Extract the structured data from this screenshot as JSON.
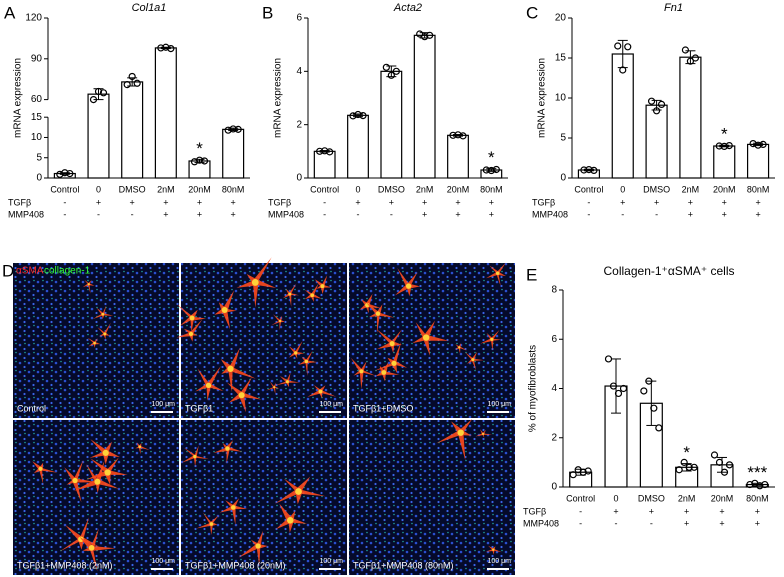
{
  "chart_data": [
    {
      "type": "bar",
      "panel": "A",
      "title": "Col1a1",
      "y_label": "mRNA expression",
      "color": "#000000",
      "categories": [
        "Control",
        "0",
        "DMSO",
        "2nM",
        "20nM",
        "80nM"
      ],
      "values": [
        1.1,
        64,
        73,
        98,
        4.2,
        12
      ],
      "errors": [
        0.2,
        4,
        3,
        0.5,
        0.4,
        0.3
      ],
      "points": [
        [
          0.9,
          1.3,
          1.1
        ],
        [
          60,
          66,
          65
        ],
        [
          71,
          77,
          72
        ],
        [
          98,
          98.5,
          97.5
        ],
        [
          4,
          4.4,
          4.2
        ],
        [
          11.8,
          12.1,
          12
        ]
      ],
      "segments": [
        {
          "ylim": [
            0,
            15
          ],
          "yticks": [
            0,
            5,
            10,
            15
          ]
        },
        {
          "ylim": [
            60,
            120
          ],
          "yticks": [
            60,
            90,
            120
          ]
        }
      ],
      "row_labels": [
        "TGFβ",
        "MMP408"
      ],
      "rows": [
        [
          "-",
          "+",
          "+",
          "+",
          "+",
          "+"
        ],
        [
          "-",
          "-",
          "-",
          "+",
          "+",
          "+"
        ]
      ],
      "stars": [
        {
          "index": 4,
          "text": "*"
        }
      ]
    },
    {
      "type": "bar",
      "panel": "B",
      "title": "Acta2",
      "y_label": "mRNA expression",
      "color": "#000000",
      "categories": [
        "Control",
        "0",
        "DMSO",
        "2nM",
        "20nM",
        "80nM"
      ],
      "values": [
        1.0,
        2.35,
        4.0,
        5.35,
        1.6,
        0.3
      ],
      "errors": [
        0.03,
        0.05,
        0.2,
        0.1,
        0.03,
        0.05
      ],
      "points": [
        [
          1.0,
          1.02,
          0.98
        ],
        [
          2.33,
          2.38,
          2.34
        ],
        [
          4.15,
          3.85,
          4.0
        ],
        [
          5.4,
          5.3,
          5.35
        ],
        [
          1.6,
          1.62,
          1.58
        ],
        [
          0.3,
          0.28,
          0.32
        ]
      ],
      "ylim": [
        0,
        6
      ],
      "yticks": [
        0,
        2,
        4,
        6
      ],
      "row_labels": [
        "TGFβ",
        "MMP408"
      ],
      "rows": [
        [
          "-",
          "+",
          "+",
          "+",
          "+",
          "+"
        ],
        [
          "-",
          "-",
          "-",
          "+",
          "+",
          "+"
        ]
      ],
      "stars": [
        {
          "index": 5,
          "text": "*"
        }
      ]
    },
    {
      "type": "bar",
      "panel": "C",
      "title": "Fn1",
      "y_label": "mRNA expression",
      "color": "#000000",
      "categories": [
        "Control",
        "0",
        "DMSO",
        "2nM",
        "20nM",
        "80nM"
      ],
      "values": [
        1.0,
        15.5,
        9.1,
        15.1,
        4.0,
        4.2
      ],
      "errors": [
        0.1,
        1.7,
        0.6,
        0.8,
        0.1,
        0.15
      ],
      "points": [
        [
          1.0,
          1.05,
          0.95
        ],
        [
          16.5,
          13.5,
          16.4
        ],
        [
          9.6,
          8.4,
          9.2
        ],
        [
          16,
          14.6,
          15
        ],
        [
          4.0,
          3.95,
          4.05
        ],
        [
          4.3,
          4.1,
          4.2
        ]
      ],
      "ylim": [
        0,
        20
      ],
      "yticks": [
        0,
        5,
        10,
        15,
        20
      ],
      "row_labels": [
        "TGFβ",
        "MMP408"
      ],
      "rows": [
        [
          "-",
          "+",
          "+",
          "+",
          "+",
          "+"
        ],
        [
          "-",
          "-",
          "-",
          "+",
          "+",
          "+"
        ]
      ],
      "stars": [
        {
          "index": 4,
          "text": "*"
        }
      ]
    },
    {
      "type": "bar",
      "panel": "E",
      "title": "Collagen-1⁺αSMA⁺ cells",
      "y_label": "% of myofibroblasts",
      "color": "#000000",
      "categories": [
        "Control",
        "0",
        "DMSO",
        "2nM",
        "20nM",
        "80nM"
      ],
      "values": [
        0.6,
        4.1,
        3.4,
        0.8,
        0.9,
        0.1
      ],
      "errors": [
        0.12,
        1.1,
        0.9,
        0.15,
        0.3,
        0.05
      ],
      "points": [
        [
          0.5,
          0.7,
          0.6,
          0.65
        ],
        [
          5.2,
          4.1,
          3.8,
          4.0
        ],
        [
          3.9,
          4.3,
          3.2,
          2.4
        ],
        [
          0.7,
          1.0,
          0.8,
          0.8
        ],
        [
          1.3,
          1.0,
          0.6,
          0.9
        ],
        [
          0.1,
          0.15,
          0.05,
          0.1
        ]
      ],
      "ylim": [
        0,
        8
      ],
      "yticks": [
        0,
        2,
        4,
        6,
        8
      ],
      "row_labels": [
        "TGFβ",
        "MMP408"
      ],
      "rows": [
        [
          "-",
          "+",
          "+",
          "+",
          "+",
          "+"
        ],
        [
          "-",
          "-",
          "-",
          "+",
          "+",
          "+"
        ]
      ],
      "stars": [
        {
          "index": 3,
          "text": "*"
        },
        {
          "index": 5,
          "text": "***"
        }
      ]
    }
  ],
  "panel_d": {
    "label": "D",
    "stains": [
      {
        "text": "αSMA",
        "color": "#ff2a2a"
      },
      {
        "text": "collagen-1",
        "color": "#33ff33"
      }
    ],
    "images": [
      {
        "caption": "Control",
        "scale": "100 μm"
      },
      {
        "caption": "TGFβ1",
        "scale": "100 μm"
      },
      {
        "caption": "TGFβ1+DMSO",
        "scale": "100 μm"
      },
      {
        "caption": "TGFβ1+MMP408 (2nM)",
        "scale": "100 μm"
      },
      {
        "caption": "TGFβ1+MMP408 (20nM)",
        "scale": "100 μm"
      },
      {
        "caption": "TGFβ1+MMP408 (80nM)",
        "scale": "100 μm"
      }
    ]
  }
}
